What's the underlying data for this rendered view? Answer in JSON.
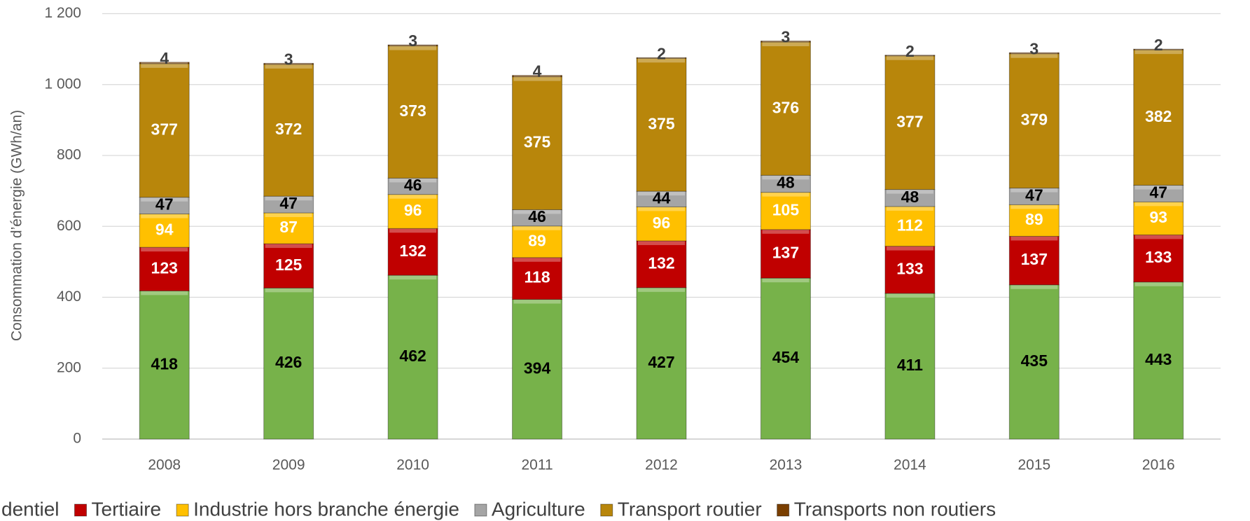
{
  "chart_data": {
    "type": "stacked_bar",
    "y_label": "Consommation d’énergie (GWh/an)",
    "categories": [
      "2008",
      "2009",
      "2010",
      "2011",
      "2012",
      "2013",
      "2014",
      "2015",
      "2016"
    ],
    "series": [
      {
        "name": "dentiel",
        "color": "#77b24a",
        "label_color": "#000000",
        "values": [
          418,
          426,
          462,
          394,
          427,
          454,
          411,
          435,
          443
        ]
      },
      {
        "name": "Tertiaire",
        "color": "#c00000",
        "label_color": "#ffffff",
        "values": [
          123,
          125,
          132,
          118,
          132,
          137,
          133,
          137,
          133
        ]
      },
      {
        "name": "Industrie hors branche énergie",
        "color": "#ffc000",
        "label_color": "#ffffff",
        "values": [
          94,
          87,
          96,
          89,
          96,
          105,
          112,
          89,
          93
        ]
      },
      {
        "name": "Agriculture",
        "color": "#a5a5a5",
        "label_color": "#000000",
        "values": [
          47,
          47,
          46,
          46,
          44,
          48,
          48,
          47,
          47
        ]
      },
      {
        "name": "Transport routier",
        "color": "#b8860b",
        "label_color": "#ffffff",
        "values": [
          377,
          372,
          373,
          375,
          375,
          376,
          377,
          379,
          382
        ]
      },
      {
        "name": "Transports non routiers",
        "color": "#7a3f00",
        "label_color": "#404040",
        "values": [
          4,
          3,
          3,
          4,
          2,
          3,
          2,
          3,
          2
        ]
      }
    ],
    "ylim": [
      0,
      1200
    ],
    "yticks": [
      0,
      200,
      400,
      600,
      800,
      {
        "value": 1000,
        "label": "1 000"
      },
      {
        "value": 1200,
        "label": "1 200"
      }
    ],
    "grid": true
  }
}
